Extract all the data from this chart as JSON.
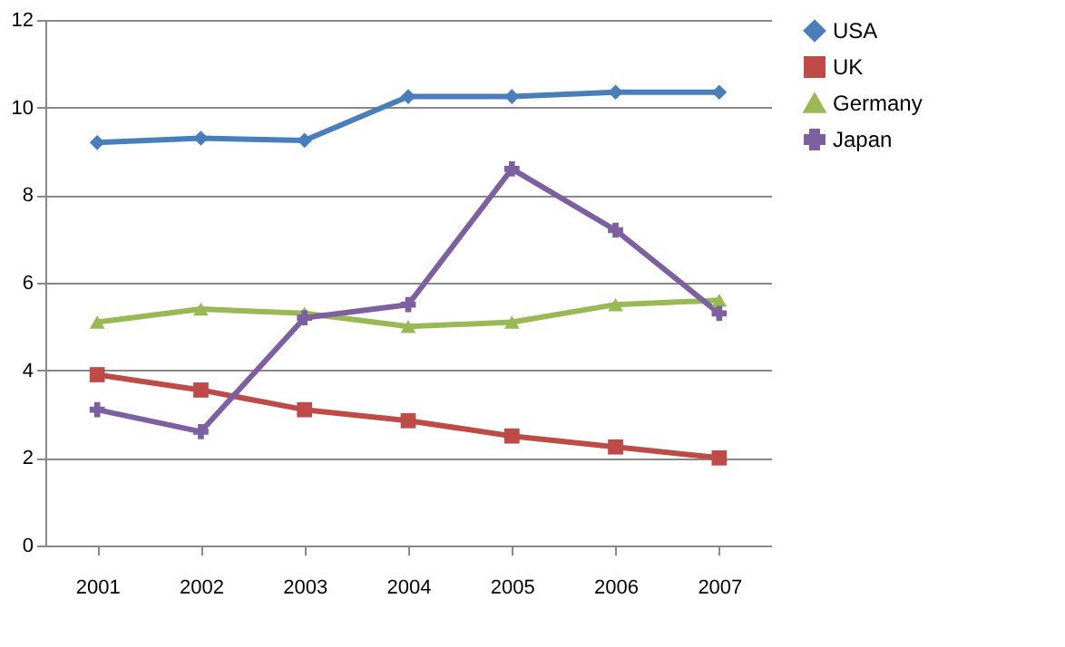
{
  "chart_data": {
    "type": "line",
    "categories": [
      "2001",
      "2002",
      "2003",
      "2004",
      "2005",
      "2006",
      "2007"
    ],
    "series": [
      {
        "name": "USA",
        "color": "#4a7ebb",
        "marker": "diamond",
        "values": [
          9.2,
          9.3,
          9.25,
          10.25,
          10.25,
          10.35,
          10.35
        ]
      },
      {
        "name": "UK",
        "color": "#be4b48",
        "marker": "square",
        "values": [
          3.9,
          3.55,
          3.1,
          2.85,
          2.5,
          2.25,
          2.0
        ]
      },
      {
        "name": "Germany",
        "color": "#98b954",
        "marker": "triangle",
        "values": [
          5.1,
          5.4,
          5.3,
          5.0,
          5.1,
          5.5,
          5.6
        ]
      },
      {
        "name": "Japan",
        "color": "#7d60a0",
        "marker": "cross",
        "values": [
          3.1,
          2.6,
          5.2,
          5.5,
          8.6,
          7.2,
          5.3
        ]
      }
    ],
    "ylim": [
      0,
      12
    ],
    "yticks": [
      0,
      2,
      4,
      6,
      8,
      10,
      12
    ],
    "grid": "y",
    "legend": "right",
    "line_style": "solid"
  }
}
